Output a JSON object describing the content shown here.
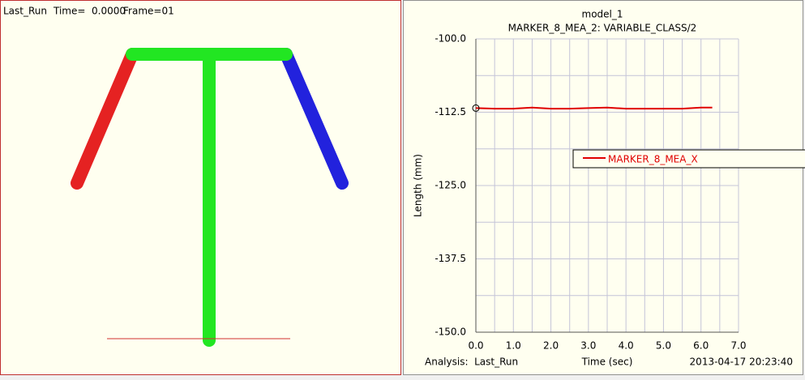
{
  "animation": {
    "run": "Last_Run",
    "time": "Time=  0.0000",
    "frame": "Frame=01"
  },
  "chart_data": {
    "type": "line",
    "title": "model_1",
    "subtitle": "MARKER_8_MEA_2: VARIABLE_CLASS/2",
    "x_label": "Time (sec)",
    "y_label": "Length (mm)",
    "analysis": "Analysis:  Last_Run",
    "timestamp": "2013-04-17 20:23:40",
    "x": [
      0,
      0.5,
      1.0,
      1.5,
      2.0,
      2.5,
      3.0,
      3.5,
      4.0,
      4.5,
      5.0,
      5.5,
      6.0,
      6.3
    ],
    "series": [
      {
        "name": "MARKER_8_MEA_X",
        "color": "#e00000",
        "values": [
          -111.8,
          -111.9,
          -111.9,
          -111.7,
          -111.9,
          -111.9,
          -111.8,
          -111.7,
          -111.9,
          -111.9,
          -111.9,
          -111.9,
          -111.7,
          -111.7
        ]
      }
    ],
    "xlim": [
      0,
      7
    ],
    "ylim": [
      -150,
      -100
    ],
    "xticks": [
      {
        "value": 0,
        "label": "0.0"
      },
      {
        "value": 1,
        "label": "1.0"
      },
      {
        "value": 2,
        "label": "2.0"
      },
      {
        "value": 3,
        "label": "3.0"
      },
      {
        "value": 4,
        "label": "4.0"
      },
      {
        "value": 5,
        "label": "5.0"
      },
      {
        "value": 6,
        "label": "6.0"
      },
      {
        "value": 7,
        "label": "7.0"
      }
    ],
    "yticks": [
      {
        "value": -100,
        "label": "-100.0"
      },
      {
        "value": -112.5,
        "label": "-112.5"
      },
      {
        "value": -125,
        "label": "-125.0"
      },
      {
        "value": -137.5,
        "label": "-137.5"
      },
      {
        "value": -150,
        "label": "-150.0"
      }
    ],
    "xgrid": [
      0.5,
      1.5,
      2.5,
      3.5,
      4.5,
      5.5,
      6.5
    ],
    "ygrid": [
      -106.25,
      -118.75,
      -131.25,
      -143.75
    ],
    "grid": true
  }
}
